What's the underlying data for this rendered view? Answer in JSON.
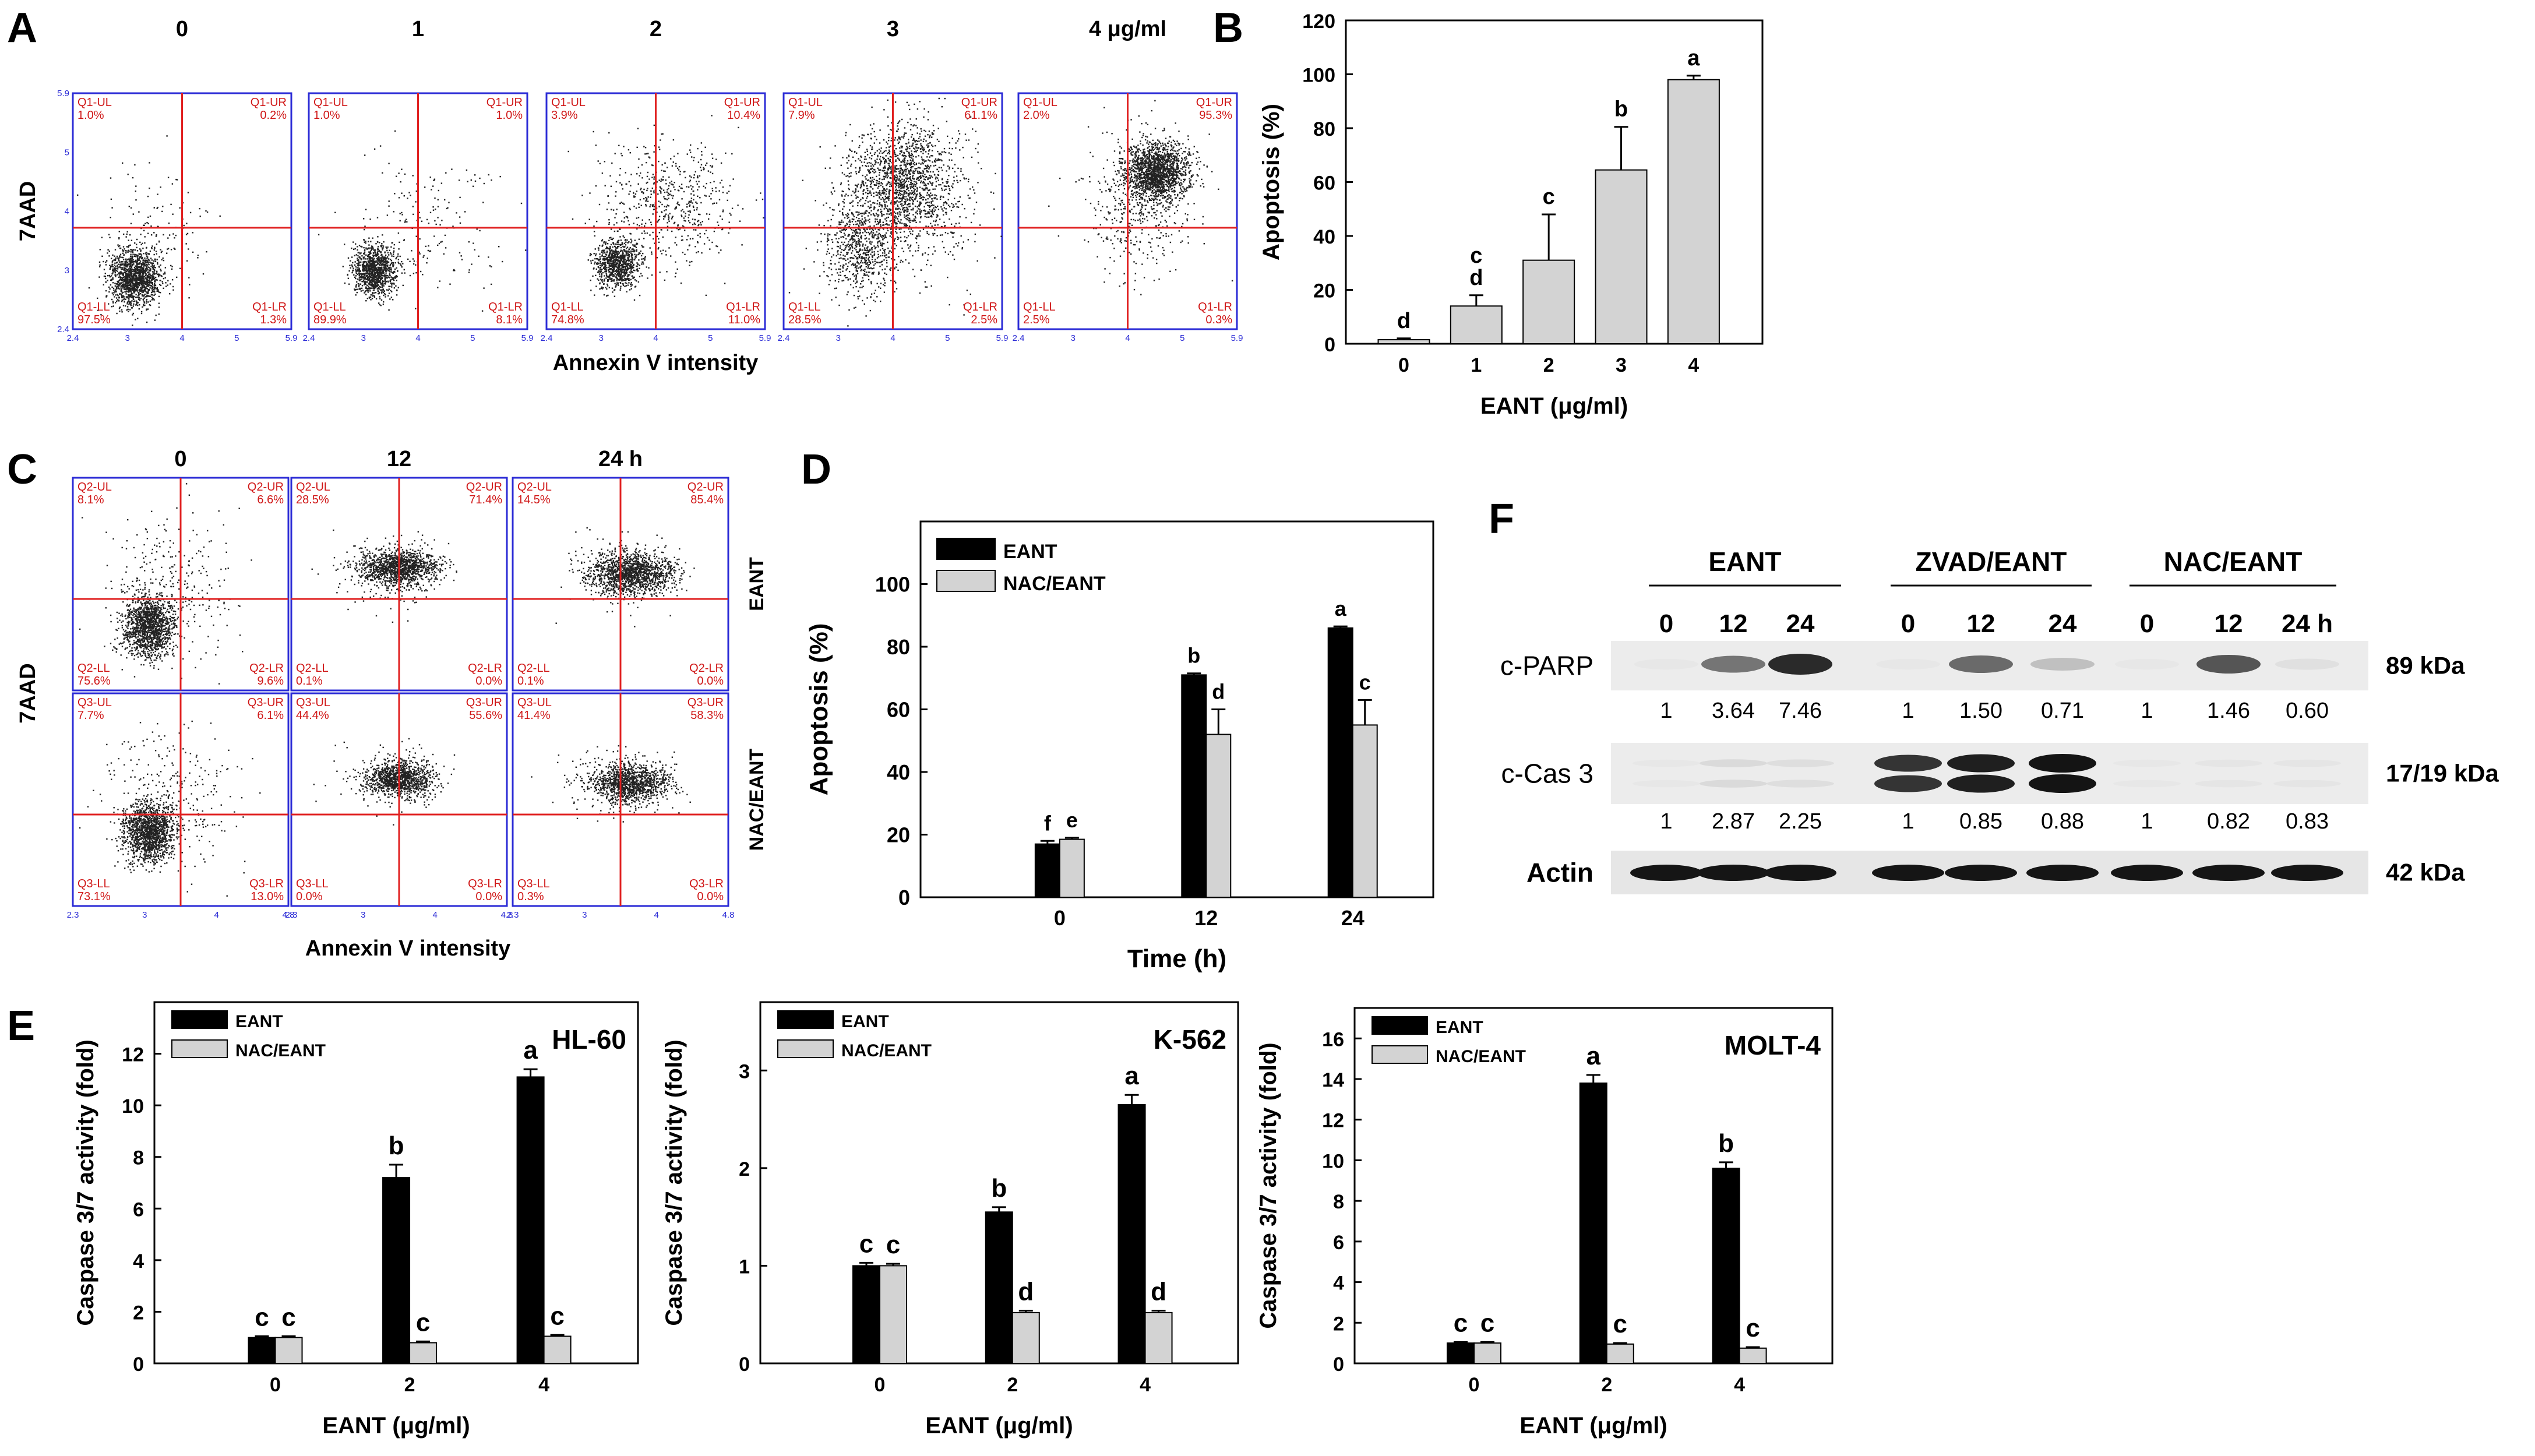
{
  "panel_letters": [
    "A",
    "B",
    "C",
    "D",
    "E",
    "F"
  ],
  "flow_A": {
    "titles": [
      "0",
      "1",
      "2",
      "3",
      "4 μg/ml"
    ],
    "ylabel": "7AAD",
    "xlabel": "Annexin V intensity",
    "tick_x": [
      "2.4",
      "3",
      "4",
      "5",
      "5.9"
    ],
    "tick_y": [
      "2.4",
      "3",
      "4",
      "5",
      "5.9"
    ],
    "quadrant_names": [
      "Q1-UL",
      "Q1-UR",
      "Q1-LL",
      "Q1-LR"
    ],
    "plots": [
      {
        "UL": "1.0%",
        "UR": "0.2%",
        "LL": "97.5%",
        "LR": "1.3%"
      },
      {
        "UL": "1.0%",
        "UR": "1.0%",
        "LL": "89.9%",
        "LR": "8.1%"
      },
      {
        "UL": "3.9%",
        "UR": "10.4%",
        "LL": "74.8%",
        "LR": "11.0%"
      },
      {
        "UL": "7.9%",
        "UR": "61.1%",
        "LL": "28.5%",
        "LR": "2.5%"
      },
      {
        "UL": "2.0%",
        "UR": "95.3%",
        "LL": "2.5%",
        "LR": "0.3%"
      }
    ]
  },
  "flow_C": {
    "titles": [
      "0",
      "12",
      "24 h"
    ],
    "row_labels": [
      "EANT",
      "NAC/EANT"
    ],
    "ylabel": "7AAD",
    "xlabel": "Annexin V intensity",
    "tick_x": [
      "2.3",
      "3",
      "4",
      "4.8"
    ],
    "quadrant_names_row1": [
      "Q2-UL",
      "Q2-UR",
      "Q2-LL",
      "Q2-LR"
    ],
    "quadrant_names_row2": [
      "Q3-UL",
      "Q3-UR",
      "Q3-LL",
      "Q3-LR"
    ],
    "plots": [
      [
        {
          "UL": "8.1%",
          "UR": "6.6%",
          "LL": "75.6%",
          "LR": "9.6%"
        },
        {
          "UL": "28.5%",
          "UR": "71.4%",
          "LL": "0.1%",
          "LR": "0.0%"
        },
        {
          "UL": "14.5%",
          "UR": "85.4%",
          "LL": "0.1%",
          "LR": "0.0%"
        }
      ],
      [
        {
          "UL": "7.7%",
          "UR": "6.1%",
          "LL": "73.1%",
          "LR": "13.0%"
        },
        {
          "UL": "44.4%",
          "UR": "55.6%",
          "LL": "0.0%",
          "LR": "0.0%"
        },
        {
          "UL": "41.4%",
          "UR": "58.3%",
          "LL": "0.3%",
          "LR": "0.0%"
        }
      ]
    ]
  },
  "western_F": {
    "groups": [
      "EANT",
      "ZVAD/EANT",
      "NAC/EANT"
    ],
    "lanes": [
      "0",
      "12",
      "24",
      "0",
      "12",
      "24",
      "0",
      "12",
      "24 h"
    ],
    "bands": [
      "c-PARP",
      "c-Cas 3",
      "Actin"
    ],
    "kda": [
      "89 kDa",
      "17/19 kDa",
      "42 kDa"
    ],
    "parp_values": [
      "1",
      "3.64",
      "7.46",
      "1",
      "1.50",
      "0.71",
      "1",
      "1.46",
      "0.60"
    ],
    "cas3_values": [
      "1",
      "2.87",
      "2.25",
      "1",
      "0.85",
      "0.88",
      "1",
      "0.82",
      "0.83"
    ],
    "parp_intensity": [
      0.02,
      0.55,
      0.9,
      0.02,
      0.6,
      0.2,
      0.02,
      0.7,
      0.05
    ],
    "cas3_intensity": [
      0.02,
      0.08,
      0.06,
      0.85,
      0.95,
      1.0,
      0.02,
      0.03,
      0.03
    ]
  },
  "chart_data": [
    {
      "id": "B",
      "type": "bar",
      "categories": [
        "0",
        "1",
        "2",
        "3",
        "4"
      ],
      "values": [
        1.5,
        14,
        31,
        64.5,
        98
      ],
      "errors": [
        0.5,
        4,
        17,
        16,
        1.5
      ],
      "letters": [
        "d",
        "c\nd",
        "c",
        "b",
        "a"
      ],
      "xlabel": "EANT (μg/ml)",
      "ylabel": "Apoptosis (%)",
      "ylim": [
        0,
        120
      ],
      "yticks": [
        0,
        20,
        40,
        60,
        80,
        100,
        120
      ],
      "colors": [
        "#d3d3d3"
      ]
    },
    {
      "id": "D",
      "type": "bar",
      "categories": [
        "0",
        "12",
        "24"
      ],
      "series": [
        {
          "name": "EANT",
          "values": [
            17,
            71,
            86
          ],
          "errors": [
            1,
            0.5,
            0.5
          ],
          "letters": [
            "f",
            "b",
            "a"
          ]
        },
        {
          "name": "NAC/EANT",
          "values": [
            18.5,
            52,
            55
          ],
          "errors": [
            0.5,
            8,
            8
          ],
          "letters": [
            "e",
            "d",
            "c"
          ]
        }
      ],
      "xlabel": "Time (h)",
      "ylabel": "Apoptosis (%)",
      "ylim": [
        0,
        120
      ],
      "yticks": [
        0,
        20,
        40,
        60,
        80,
        100
      ],
      "legend": "top-left",
      "colors": [
        "#000000",
        "#d3d3d3"
      ]
    },
    {
      "id": "E1",
      "type": "bar",
      "title": "HL-60",
      "categories": [
        "0",
        "2",
        "4"
      ],
      "series": [
        {
          "name": "EANT",
          "values": [
            1.0,
            7.2,
            11.1
          ],
          "errors": [
            0.05,
            0.5,
            0.3
          ],
          "letters": [
            "c",
            "b",
            "a"
          ]
        },
        {
          "name": "NAC/EANT",
          "values": [
            1.0,
            0.8,
            1.05
          ],
          "errors": [
            0.05,
            0.05,
            0.05
          ],
          "letters": [
            "c",
            "c",
            "c"
          ]
        }
      ],
      "xlabel": "EANT (μg/ml)",
      "ylabel": "Caspase 3/7 activity (fold)",
      "ylim": [
        0,
        14
      ],
      "yticks": [
        0,
        2,
        4,
        6,
        8,
        10,
        12
      ],
      "legend": "top-left",
      "colors": [
        "#000000",
        "#d3d3d3"
      ]
    },
    {
      "id": "E2",
      "type": "bar",
      "title": "K-562",
      "categories": [
        "0",
        "2",
        "4"
      ],
      "series": [
        {
          "name": "EANT",
          "values": [
            1.0,
            1.55,
            2.65
          ],
          "errors": [
            0.03,
            0.05,
            0.1
          ],
          "letters": [
            "c",
            "b",
            "a"
          ]
        },
        {
          "name": "NAC/EANT",
          "values": [
            1.0,
            0.52,
            0.52
          ],
          "errors": [
            0.02,
            0.02,
            0.02
          ],
          "letters": [
            "c",
            "d",
            "d"
          ]
        }
      ],
      "xlabel": "EANT (μg/ml)",
      "ylabel": "Caspase 3/7 activity (fold)",
      "ylim": [
        0,
        3.7
      ],
      "yticks": [
        0,
        1,
        2,
        3
      ],
      "legend": "top-left",
      "colors": [
        "#000000",
        "#d3d3d3"
      ]
    },
    {
      "id": "E3",
      "type": "bar",
      "title": "MOLT-4",
      "categories": [
        "0",
        "2",
        "4"
      ],
      "series": [
        {
          "name": "EANT",
          "values": [
            1.0,
            13.8,
            9.6
          ],
          "errors": [
            0.05,
            0.4,
            0.3
          ],
          "letters": [
            "c",
            "a",
            "b"
          ]
        },
        {
          "name": "NAC/EANT",
          "values": [
            1.0,
            0.95,
            0.75
          ],
          "errors": [
            0.05,
            0.05,
            0.05
          ],
          "letters": [
            "c",
            "c",
            "c"
          ]
        }
      ],
      "xlabel": "EANT (μg/ml)",
      "ylabel": "Caspase 3/7 activity (fold)",
      "ylim": [
        0,
        17.5
      ],
      "yticks": [
        0,
        2,
        4,
        6,
        8,
        10,
        12,
        14,
        16
      ],
      "legend": "top-left",
      "colors": [
        "#000000",
        "#d3d3d3"
      ]
    }
  ]
}
